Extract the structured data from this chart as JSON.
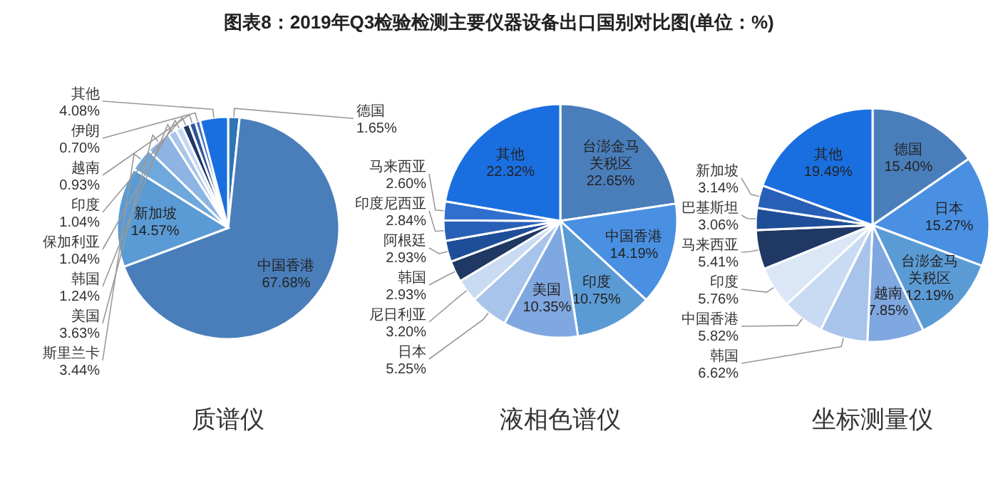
{
  "chart_data": [
    {
      "type": "pie",
      "title": "质谱仪",
      "annotations": [
        "图表8：2019年Q3检验检测主要仪器设备出口国别对比图(单位：%)"
      ],
      "categories": [
        "德国",
        "中国香港",
        "新加坡",
        "斯里兰卡",
        "美国",
        "韩国",
        "保加利亚",
        "印度",
        "越南",
        "伊朗",
        "其他"
      ],
      "values": [
        1.65,
        67.68,
        14.57,
        3.44,
        3.63,
        1.24,
        1.04,
        1.04,
        0.93,
        0.7,
        4.08
      ],
      "value_labels": [
        "1.65%",
        "67.68%",
        "14.57%",
        "3.44%",
        "3.63%",
        "1.24%",
        "1.04%",
        "1.04%",
        "0.93%",
        "0.70%",
        "4.08%"
      ],
      "colors": [
        "#2e75b6",
        "#4a7ebb",
        "#5b9bd5",
        "#6fa8dc",
        "#8eb4e3",
        "#a9c6ea",
        "#c5d9f1",
        "#1f3864",
        "#2f5597",
        "#4472c4",
        "#1a6fe0"
      ]
    },
    {
      "type": "pie",
      "title": "液相色谱仪",
      "categories": [
        "台澎金马关税区",
        "中国香港",
        "印度",
        "美国",
        "日本",
        "尼日利亚",
        "韩国",
        "阿根廷",
        "印度尼西亚",
        "马来西亚",
        "其他"
      ],
      "values": [
        22.65,
        14.19,
        10.75,
        10.35,
        5.25,
        3.2,
        2.93,
        2.93,
        2.84,
        2.6,
        22.32
      ],
      "value_labels": [
        "22.65%",
        "14.19%",
        "10.75%",
        "10.35%",
        "5.25%",
        "3.20%",
        "2.93%",
        "2.93%",
        "2.84%",
        "2.60%",
        "22.32%"
      ],
      "colors": [
        "#4a7ebb",
        "#4a90e2",
        "#5b9bd5",
        "#7fa7e0",
        "#a9c4eb",
        "#c9dbf3",
        "#1f3864",
        "#1f4e99",
        "#2860b8",
        "#2f6fcf",
        "#1a6fe0"
      ]
    },
    {
      "type": "pie",
      "title": "坐标测量仪",
      "categories": [
        "德国",
        "日本",
        "台澎金马关税区",
        "越南",
        "韩国",
        "中国香港",
        "印度",
        "马来西亚",
        "巴基斯坦",
        "新加坡",
        "其他"
      ],
      "values": [
        15.4,
        15.27,
        12.19,
        7.85,
        6.62,
        5.82,
        5.76,
        5.41,
        3.06,
        3.14,
        19.49
      ],
      "value_labels": [
        "15.40%",
        "15.27%",
        "12.19%",
        "7.85%",
        "6.62%",
        "5.82%",
        "5.76%",
        "5.41%",
        "3.06%",
        "3.14%",
        "19.49%"
      ],
      "colors": [
        "#4a7ebb",
        "#4a90e2",
        "#5b9bd5",
        "#7fa7e0",
        "#a9c4eb",
        "#c9dbf3",
        "#dbe7f7",
        "#1f3864",
        "#1f4e99",
        "#2860b8",
        "#1a6fe0"
      ]
    }
  ]
}
